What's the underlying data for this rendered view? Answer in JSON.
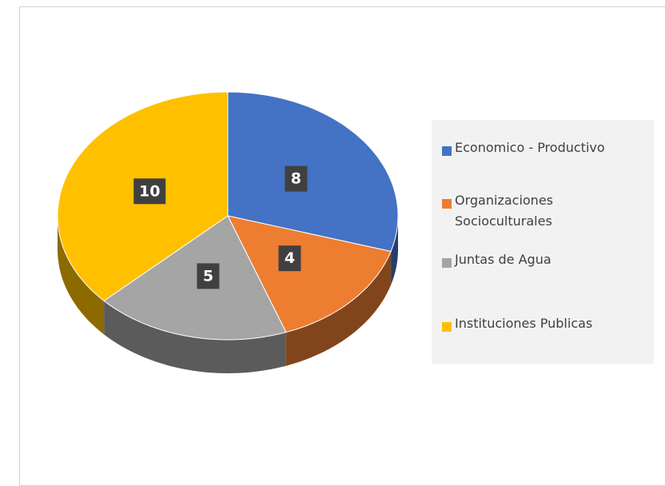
{
  "chart_data": {
    "type": "pie",
    "categories": [
      "Economico - Productivo",
      "Organizaciones Socioculturales",
      "Juntas de Agua",
      "Instituciones Publicas"
    ],
    "values": [
      8,
      4,
      5,
      10
    ],
    "colors": [
      "#4472c4",
      "#ed7d31",
      "#a5a5a5",
      "#ffc000"
    ],
    "legend": "right"
  }
}
